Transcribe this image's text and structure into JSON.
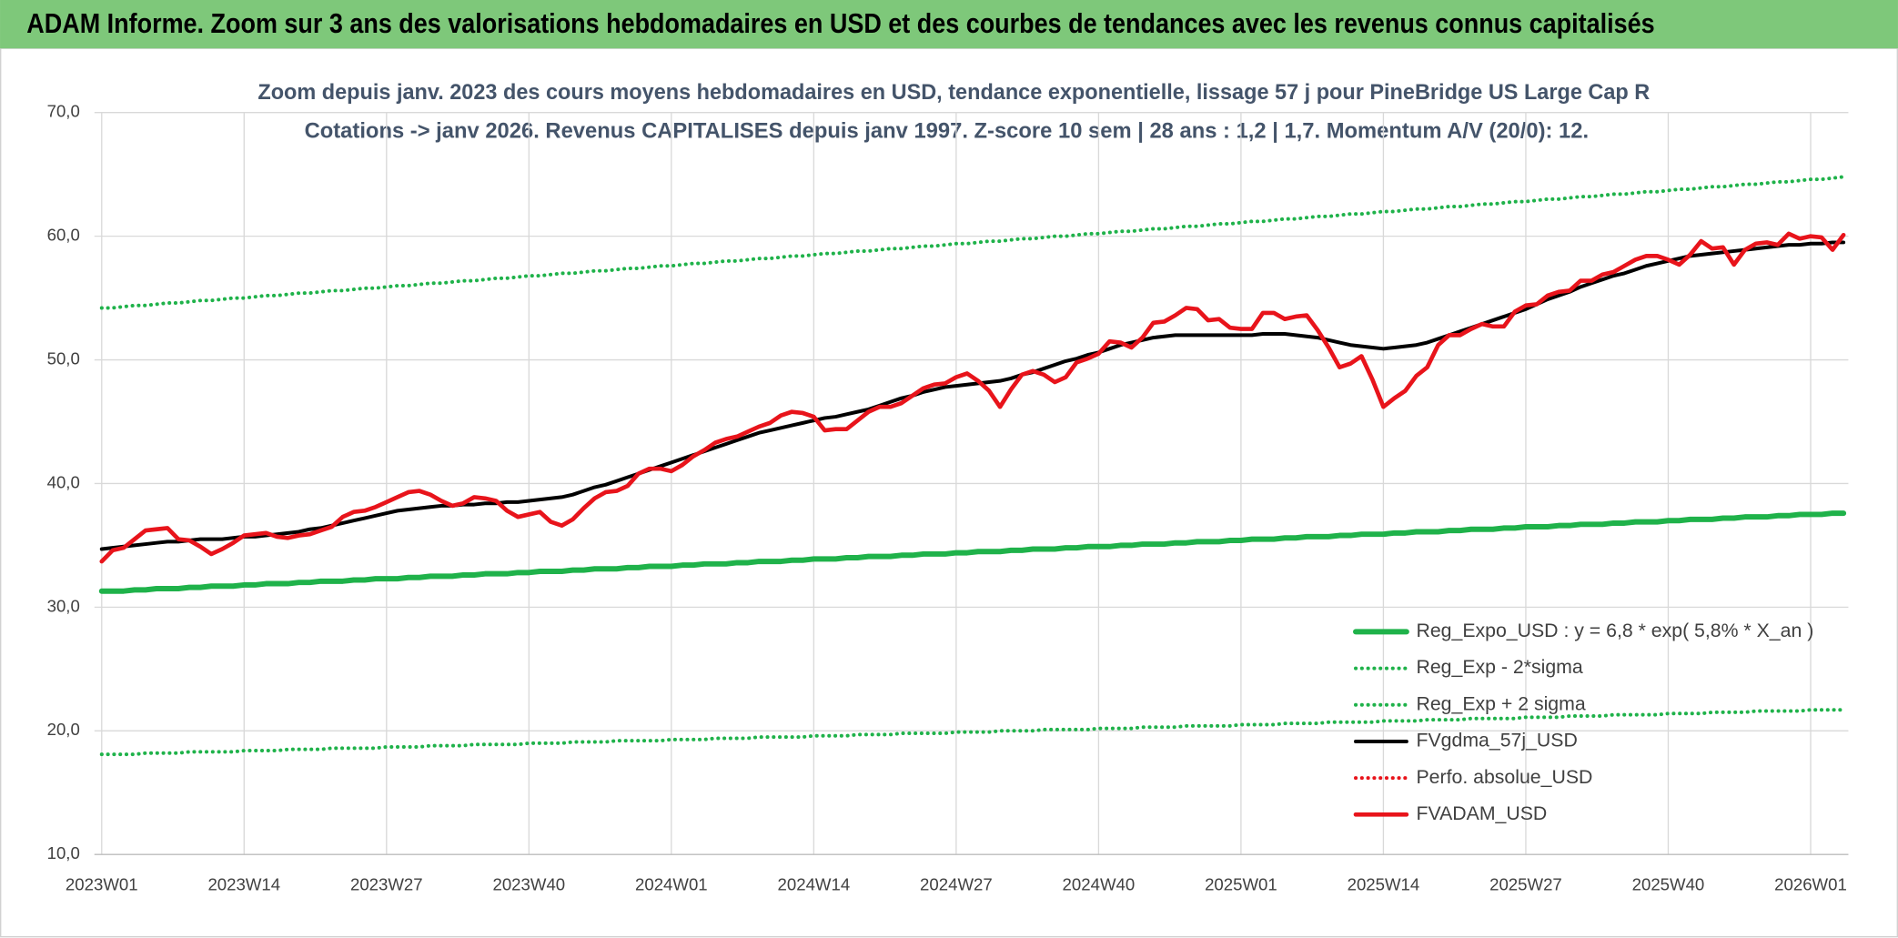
{
  "chart_data": {
    "type": "line",
    "banner": "ADAM Informe. Zoom sur 3 ans des valorisations hebdomadaires en USD et des courbes de tendances avec les revenus connus capitalisés",
    "title": "Zoom depuis janv. 2023 des cours moyens hebdomadaires en USD, tendance exponentielle, lissage 57 j pour PineBridge US Large Cap R",
    "subtitle": "Cotations -> janv 2026. Revenus CAPITALISES depuis janv 1997. Z-score 10 sem | 28 ans : 1,2 | 1,7. Momentum A/V (20/0): 12.",
    "grid": true,
    "legend": "lower right",
    "ylim": [
      10,
      70
    ],
    "yticks": [
      {
        "value": 10,
        "label": "10,0"
      },
      {
        "value": 20,
        "label": "20,0"
      },
      {
        "value": 30,
        "label": "30,0"
      },
      {
        "value": 40,
        "label": "40,0"
      },
      {
        "value": 50,
        "label": "50,0"
      },
      {
        "value": 60,
        "label": "60,0"
      },
      {
        "value": 70,
        "label": "70,0"
      }
    ],
    "categories": [
      "2023W01",
      null,
      null,
      null,
      null,
      null,
      null,
      null,
      null,
      null,
      null,
      null,
      null,
      "2023W14",
      null,
      null,
      null,
      null,
      null,
      null,
      null,
      null,
      null,
      null,
      null,
      null,
      "2023W27",
      null,
      null,
      null,
      null,
      null,
      null,
      null,
      null,
      null,
      null,
      null,
      null,
      "2023W40",
      null,
      null,
      null,
      null,
      null,
      null,
      null,
      null,
      null,
      null,
      null,
      null,
      "2024W01",
      null,
      null,
      null,
      null,
      null,
      null,
      null,
      null,
      null,
      null,
      null,
      null,
      "2024W14",
      null,
      null,
      null,
      null,
      null,
      null,
      null,
      null,
      null,
      null,
      null,
      null,
      "2024W27",
      null,
      null,
      null,
      null,
      null,
      null,
      null,
      null,
      null,
      null,
      null,
      null,
      "2024W40",
      null,
      null,
      null,
      null,
      null,
      null,
      null,
      null,
      null,
      null,
      null,
      null,
      "2025W01",
      null,
      null,
      null,
      null,
      null,
      null,
      null,
      null,
      null,
      null,
      null,
      null,
      "2025W14",
      null,
      null,
      null,
      null,
      null,
      null,
      null,
      null,
      null,
      null,
      null,
      null,
      "2025W27",
      null,
      null,
      null,
      null,
      null,
      null,
      null,
      null,
      null,
      null,
      null,
      null,
      "2025W40",
      null,
      null,
      null,
      null,
      null,
      null,
      null,
      null,
      null,
      null,
      null,
      null,
      "2026W01",
      null,
      null,
      null
    ],
    "series": [
      {
        "name": "Reg_Expo_USD : y = 6,8 * exp( 5,8% *  X_an )",
        "color": "#1fb24a",
        "line_style": "solid",
        "linewidth": 4.5,
        "values": [
          31.3,
          31.3,
          31.3,
          31.4,
          31.4,
          31.5,
          31.5,
          31.5,
          31.6,
          31.6,
          31.7,
          31.7,
          31.7,
          31.8,
          31.8,
          31.9,
          31.9,
          31.9,
          32.0,
          32.0,
          32.1,
          32.1,
          32.1,
          32.2,
          32.2,
          32.3,
          32.3,
          32.3,
          32.4,
          32.4,
          32.5,
          32.5,
          32.5,
          32.6,
          32.6,
          32.7,
          32.7,
          32.7,
          32.8,
          32.8,
          32.9,
          32.9,
          32.9,
          33.0,
          33.0,
          33.1,
          33.1,
          33.1,
          33.2,
          33.2,
          33.3,
          33.3,
          33.3,
          33.4,
          33.4,
          33.5,
          33.5,
          33.5,
          33.6,
          33.6,
          33.7,
          33.7,
          33.7,
          33.8,
          33.8,
          33.9,
          33.9,
          33.9,
          34.0,
          34.0,
          34.1,
          34.1,
          34.1,
          34.2,
          34.2,
          34.3,
          34.3,
          34.3,
          34.4,
          34.4,
          34.5,
          34.5,
          34.5,
          34.6,
          34.6,
          34.7,
          34.7,
          34.7,
          34.8,
          34.8,
          34.9,
          34.9,
          34.9,
          35.0,
          35.0,
          35.1,
          35.1,
          35.1,
          35.2,
          35.2,
          35.3,
          35.3,
          35.3,
          35.4,
          35.4,
          35.5,
          35.5,
          35.5,
          35.6,
          35.6,
          35.7,
          35.7,
          35.7,
          35.8,
          35.8,
          35.9,
          35.9,
          35.9,
          36.0,
          36.0,
          36.1,
          36.1,
          36.1,
          36.2,
          36.2,
          36.3,
          36.3,
          36.3,
          36.4,
          36.4,
          36.5,
          36.5,
          36.5,
          36.6,
          36.6,
          36.7,
          36.7,
          36.7,
          36.8,
          36.8,
          36.9,
          36.9,
          36.9,
          37.0,
          37.0,
          37.1,
          37.1,
          37.1,
          37.2,
          37.2,
          37.3,
          37.3,
          37.3,
          37.4,
          37.4,
          37.5,
          37.5,
          37.5,
          37.6,
          37.6
        ]
      },
      {
        "name": "Reg_Exp - 2*sigma",
        "color": "#1fb24a",
        "line_style": "dotted",
        "linewidth": 3,
        "values": [
          18.1,
          18.1,
          18.1,
          18.1,
          18.2,
          18.2,
          18.2,
          18.2,
          18.3,
          18.3,
          18.3,
          18.3,
          18.3,
          18.4,
          18.4,
          18.4,
          18.4,
          18.5,
          18.5,
          18.5,
          18.5,
          18.6,
          18.6,
          18.6,
          18.6,
          18.6,
          18.7,
          18.7,
          18.7,
          18.7,
          18.8,
          18.8,
          18.8,
          18.8,
          18.9,
          18.9,
          18.9,
          18.9,
          18.9,
          19.0,
          19.0,
          19.0,
          19.0,
          19.1,
          19.1,
          19.1,
          19.1,
          19.2,
          19.2,
          19.2,
          19.2,
          19.2,
          19.3,
          19.3,
          19.3,
          19.3,
          19.4,
          19.4,
          19.4,
          19.4,
          19.5,
          19.5,
          19.5,
          19.5,
          19.5,
          19.6,
          19.6,
          19.6,
          19.6,
          19.7,
          19.7,
          19.7,
          19.7,
          19.8,
          19.8,
          19.8,
          19.8,
          19.8,
          19.9,
          19.9,
          19.9,
          19.9,
          20.0,
          20.0,
          20.0,
          20.0,
          20.1,
          20.1,
          20.1,
          20.1,
          20.1,
          20.2,
          20.2,
          20.2,
          20.2,
          20.3,
          20.3,
          20.3,
          20.3,
          20.4,
          20.4,
          20.4,
          20.4,
          20.4,
          20.5,
          20.5,
          20.5,
          20.5,
          20.6,
          20.6,
          20.6,
          20.6,
          20.7,
          20.7,
          20.7,
          20.7,
          20.7,
          20.8,
          20.8,
          20.8,
          20.8,
          20.9,
          20.9,
          20.9,
          20.9,
          21.0,
          21.0,
          21.0,
          21.0,
          21.0,
          21.1,
          21.1,
          21.1,
          21.1,
          21.2,
          21.2,
          21.2,
          21.2,
          21.3,
          21.3,
          21.3,
          21.3,
          21.3,
          21.4,
          21.4,
          21.4,
          21.4,
          21.5,
          21.5,
          21.5,
          21.5,
          21.6,
          21.6,
          21.6,
          21.6,
          21.6,
          21.7,
          21.7,
          21.7,
          21.7
        ]
      },
      {
        "name": "Reg_Exp + 2 sigma",
        "color": "#1fb24a",
        "line_style": "dotted",
        "linewidth": 3,
        "values": [
          54.2,
          54.2,
          54.3,
          54.4,
          54.4,
          54.5,
          54.6,
          54.6,
          54.7,
          54.8,
          54.8,
          54.9,
          55.0,
          55.0,
          55.1,
          55.2,
          55.2,
          55.3,
          55.4,
          55.4,
          55.5,
          55.6,
          55.6,
          55.7,
          55.8,
          55.8,
          55.9,
          56.0,
          56.0,
          56.1,
          56.2,
          56.2,
          56.3,
          56.4,
          56.4,
          56.5,
          56.6,
          56.6,
          56.7,
          56.8,
          56.8,
          56.9,
          57.0,
          57.0,
          57.1,
          57.2,
          57.2,
          57.3,
          57.4,
          57.4,
          57.5,
          57.6,
          57.6,
          57.7,
          57.8,
          57.8,
          57.9,
          58.0,
          58.0,
          58.1,
          58.2,
          58.2,
          58.3,
          58.4,
          58.4,
          58.5,
          58.6,
          58.6,
          58.7,
          58.8,
          58.8,
          58.9,
          59.0,
          59.0,
          59.1,
          59.2,
          59.2,
          59.3,
          59.4,
          59.4,
          59.5,
          59.6,
          59.6,
          59.7,
          59.8,
          59.8,
          59.9,
          60.0,
          60.0,
          60.1,
          60.2,
          60.2,
          60.3,
          60.4,
          60.4,
          60.5,
          60.6,
          60.6,
          60.7,
          60.8,
          60.8,
          60.9,
          61.0,
          61.0,
          61.1,
          61.2,
          61.2,
          61.3,
          61.4,
          61.4,
          61.5,
          61.6,
          61.6,
          61.7,
          61.8,
          61.8,
          61.9,
          62.0,
          62.0,
          62.1,
          62.2,
          62.2,
          62.3,
          62.4,
          62.4,
          62.5,
          62.6,
          62.6,
          62.7,
          62.8,
          62.8,
          62.9,
          63.0,
          63.0,
          63.1,
          63.2,
          63.2,
          63.3,
          63.4,
          63.4,
          63.5,
          63.6,
          63.6,
          63.7,
          63.8,
          63.8,
          63.9,
          64.0,
          64.0,
          64.1,
          64.2,
          64.2,
          64.3,
          64.4,
          64.4,
          64.5,
          64.6,
          64.6,
          64.7,
          64.8
        ]
      },
      {
        "name": "FVgdma_57j_USD",
        "color": "#000000",
        "line_style": "solid",
        "linewidth": 3,
        "values": [
          34.7,
          34.8,
          34.9,
          35.0,
          35.1,
          35.2,
          35.3,
          35.3,
          35.4,
          35.5,
          35.5,
          35.5,
          35.6,
          35.7,
          35.7,
          35.8,
          35.9,
          36.0,
          36.1,
          36.3,
          36.4,
          36.6,
          36.8,
          37.0,
          37.2,
          37.4,
          37.6,
          37.8,
          37.9,
          38.0,
          38.1,
          38.2,
          38.2,
          38.3,
          38.3,
          38.4,
          38.4,
          38.5,
          38.5,
          38.6,
          38.7,
          38.8,
          38.9,
          39.1,
          39.4,
          39.7,
          39.9,
          40.2,
          40.5,
          40.8,
          41.1,
          41.4,
          41.7,
          42.0,
          42.3,
          42.6,
          42.9,
          43.2,
          43.5,
          43.8,
          44.1,
          44.3,
          44.5,
          44.7,
          44.9,
          45.1,
          45.3,
          45.4,
          45.6,
          45.8,
          46.0,
          46.3,
          46.6,
          46.9,
          47.1,
          47.4,
          47.6,
          47.8,
          47.9,
          48.0,
          48.1,
          48.2,
          48.3,
          48.5,
          48.8,
          49.0,
          49.3,
          49.6,
          49.9,
          50.1,
          50.4,
          50.6,
          50.9,
          51.2,
          51.4,
          51.6,
          51.8,
          51.9,
          52.0,
          52.0,
          52.0,
          52.0,
          52.0,
          52.0,
          52.0,
          52.0,
          52.1,
          52.1,
          52.1,
          52.0,
          51.9,
          51.8,
          51.6,
          51.4,
          51.2,
          51.1,
          51.0,
          50.9,
          51.0,
          51.1,
          51.2,
          51.4,
          51.7,
          52.0,
          52.3,
          52.6,
          52.9,
          53.2,
          53.5,
          53.8,
          54.1,
          54.5,
          54.9,
          55.2,
          55.5,
          55.9,
          56.2,
          56.5,
          56.8,
          57.0,
          57.3,
          57.6,
          57.8,
          58.0,
          58.2,
          58.4,
          58.5,
          58.6,
          58.7,
          58.8,
          58.9,
          59.0,
          59.1,
          59.2,
          59.3,
          59.3,
          59.4,
          59.4,
          59.5,
          59.5
        ]
      },
      {
        "name": "Perfo. absolue_USD",
        "color": "#e8141b",
        "line_style": "dotted",
        "linewidth": 3,
        "values": [
          null,
          null,
          null,
          null,
          null,
          null,
          null,
          null,
          null,
          null,
          null,
          null,
          null,
          null,
          null,
          null,
          null,
          null,
          null,
          null,
          null,
          null,
          null,
          null,
          null,
          null,
          null,
          null,
          null,
          null,
          null,
          null,
          null,
          null,
          null,
          null,
          null,
          null,
          null,
          null,
          null,
          null,
          null,
          null,
          null,
          null,
          null,
          null,
          null,
          null,
          null,
          null,
          null,
          null,
          null,
          null,
          null,
          null,
          null,
          null,
          null,
          null,
          null,
          null,
          null,
          null,
          null,
          null,
          null,
          null,
          null,
          null,
          null,
          null,
          null,
          null,
          null,
          null,
          null,
          null,
          null,
          null,
          null,
          null,
          null,
          null,
          null,
          null,
          null,
          null,
          null,
          null,
          null,
          null,
          null,
          null,
          null,
          null,
          null,
          null,
          null,
          null,
          null,
          null,
          null,
          null,
          null,
          null,
          null,
          null,
          null,
          null,
          null,
          null,
          null,
          null,
          null,
          null,
          null,
          null,
          null,
          null,
          null,
          null,
          null,
          null,
          null,
          null,
          null,
          null,
          null,
          null,
          null,
          null,
          null,
          null,
          null,
          null,
          null,
          null,
          null,
          null,
          null,
          null,
          null,
          null,
          null,
          null,
          null,
          null,
          null,
          null,
          null,
          null,
          null,
          null,
          null,
          null,
          null,
          null
        ]
      },
      {
        "name": "FVADAM_USD",
        "color": "#e8141b",
        "line_style": "solid",
        "linewidth": 3.5,
        "values": [
          33.7,
          34.6,
          34.8,
          35.5,
          36.2,
          36.3,
          36.4,
          35.5,
          35.4,
          34.9,
          34.3,
          34.7,
          35.2,
          35.8,
          35.9,
          36.0,
          35.7,
          35.6,
          35.8,
          35.9,
          36.2,
          36.5,
          37.3,
          37.7,
          37.8,
          38.1,
          38.5,
          38.9,
          39.3,
          39.4,
          39.1,
          38.6,
          38.2,
          38.4,
          38.9,
          38.8,
          38.6,
          37.8,
          37.3,
          37.5,
          37.7,
          36.9,
          36.6,
          37.1,
          38.0,
          38.8,
          39.3,
          39.4,
          39.8,
          40.8,
          41.2,
          41.2,
          41.0,
          41.5,
          42.2,
          42.7,
          43.3,
          43.6,
          43.8,
          44.2,
          44.6,
          44.9,
          45.5,
          45.8,
          45.7,
          45.4,
          44.3,
          44.4,
          44.4,
          45.1,
          45.8,
          46.2,
          46.2,
          46.5,
          47.1,
          47.7,
          48.0,
          48.1,
          48.6,
          48.9,
          48.3,
          47.5,
          46.2,
          47.6,
          48.8,
          49.1,
          48.8,
          48.2,
          48.6,
          49.8,
          50.1,
          50.5,
          51.5,
          51.4,
          51.0,
          51.8,
          53.0,
          53.1,
          53.6,
          54.2,
          54.1,
          53.2,
          53.3,
          52.6,
          52.5,
          52.5,
          53.8,
          53.8,
          53.3,
          53.5,
          53.6,
          52.4,
          51.0,
          49.4,
          49.7,
          50.3,
          48.4,
          46.2,
          46.9,
          47.5,
          48.7,
          49.4,
          51.2,
          52.0,
          52.0,
          52.5,
          52.9,
          52.7,
          52.7,
          53.9,
          54.4,
          54.5,
          55.2,
          55.5,
          55.6,
          56.4,
          56.4,
          56.9,
          57.1,
          57.6,
          58.1,
          58.4,
          58.4,
          58.1,
          57.7,
          58.5,
          59.6,
          59.0,
          59.1,
          57.7,
          58.9,
          59.4,
          59.5,
          59.3,
          60.2,
          59.8,
          60.0,
          59.9,
          58.9,
          60.1
        ]
      }
    ]
  }
}
